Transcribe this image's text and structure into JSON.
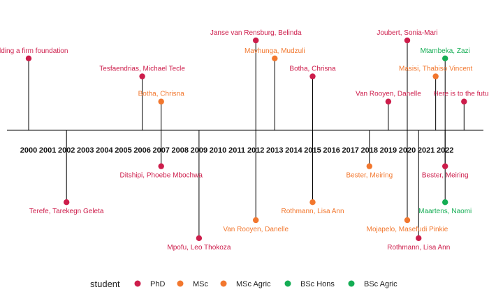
{
  "chart_data": {
    "type": "timeline",
    "categories": [
      "PhD",
      "MSc",
      "MSc Agric",
      "BSc Hons",
      "BSc Agric"
    ],
    "colors": {
      "PhD": "#cd1d4b",
      "MSc": "#f2772e",
      "MSc Agric": "#f2772e",
      "BSc Hons": "#14ad54",
      "BSc Agric": "#14ad54"
    },
    "years": [
      "2000",
      "2001",
      "2002",
      "2003",
      "2004",
      "2005",
      "2006",
      "2007",
      "2008",
      "2009",
      "2010",
      "2011",
      "2012",
      "2013",
      "2014",
      "2015",
      "2016",
      "2017",
      "2018",
      "2019",
      "2020",
      "2021",
      "2022"
    ],
    "events": [
      {
        "year": 2000.0,
        "level": 2,
        "label": "Building a firm foundation",
        "category": "PhD"
      },
      {
        "year": 2002.0,
        "level": -2,
        "label": "Terefe, Tarekegn Geleta",
        "category": "PhD"
      },
      {
        "year": 2006.0,
        "level": 1.5,
        "label": "Tesfaendrias, Michael Tecle",
        "category": "PhD"
      },
      {
        "year": 2007.0,
        "level": 0.8,
        "label": "Botha, Chrisna",
        "category": "MSc"
      },
      {
        "year": 2007.0,
        "level": -1,
        "label": "Ditshipi, Phoebe Mbochwa",
        "category": "PhD"
      },
      {
        "year": 2009.0,
        "level": -3,
        "label": "Mpofu, Leo Thokoza",
        "category": "PhD"
      },
      {
        "year": 2012.0,
        "level": 2.5,
        "label": "Janse van Rensburg, Belinda",
        "category": "PhD"
      },
      {
        "year": 2012.0,
        "level": -2.5,
        "label": "Van Rooyen, Danelle",
        "category": "MSc"
      },
      {
        "year": 2013.0,
        "level": 2,
        "label": "Mavhunga, Mudzuli",
        "category": "MSc"
      },
      {
        "year": 2015.0,
        "level": 1.5,
        "label": "Botha, Chrisna",
        "category": "PhD"
      },
      {
        "year": 2015.0,
        "level": -2,
        "label": "Rothmann, Lisa Ann",
        "category": "MSc"
      },
      {
        "year": 2018.0,
        "level": -1,
        "label": "Bester, Meiring",
        "category": "MSc"
      },
      {
        "year": 2019.0,
        "level": 0.8,
        "label": "Van Rooyen, Danelle",
        "category": "PhD"
      },
      {
        "year": 2020.0,
        "level": 2.5,
        "label": "Joubert, Sonia-Mari",
        "category": "PhD"
      },
      {
        "year": 2020.0,
        "level": -2.5,
        "label": "Mojapelo, Masefudi Pinkie",
        "category": "MSc"
      },
      {
        "year": 2020.6,
        "level": -3,
        "label": "Rothmann, Lisa Ann",
        "category": "PhD"
      },
      {
        "year": 2021.5,
        "level": 1.5,
        "label": "Masisi, Thabiso Vincent",
        "category": "MSc"
      },
      {
        "year": 2022.0,
        "level": 2,
        "label": "Mtambeka, Zazi",
        "category": "BSc Hons"
      },
      {
        "year": 2022.0,
        "level": -1,
        "label": "Bester, Meiring",
        "category": "PhD"
      },
      {
        "year": 2022.0,
        "level": -2,
        "label": "Maartens, Naomi",
        "category": "BSc Hons"
      },
      {
        "year": 2023.0,
        "level": 0.8,
        "label": "Here is to the future",
        "category": "PhD"
      }
    ],
    "legend": {
      "title": "student",
      "position": "bottom",
      "entries": [
        "PhD",
        "MSc",
        "MSc Agric",
        "BSc Hons",
        "BSc Agric"
      ]
    }
  }
}
